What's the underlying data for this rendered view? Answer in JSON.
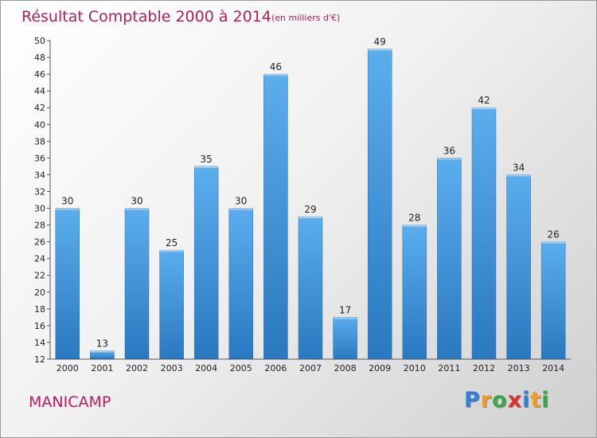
{
  "chart_data": {
    "type": "bar",
    "title": "Résultat Comptable 2000 à 2014",
    "subtitle": "(en milliers d'€)",
    "categories": [
      "2000",
      "2001",
      "2002",
      "2003",
      "2004",
      "2005",
      "2006",
      "2007",
      "2008",
      "2009",
      "2010",
      "2011",
      "2012",
      "2013",
      "2014"
    ],
    "values": [
      30,
      13,
      30,
      25,
      35,
      30,
      46,
      29,
      17,
      49,
      28,
      36,
      42,
      34,
      26
    ],
    "ylim": [
      12,
      50
    ],
    "yticks": [
      12,
      14,
      16,
      18,
      20,
      22,
      24,
      26,
      28,
      30,
      32,
      34,
      36,
      38,
      40,
      42,
      44,
      46,
      48,
      50
    ],
    "grid": false,
    "bar_color": "#3f96dd"
  },
  "commune": "MANICAMP",
  "brand": {
    "letters": [
      "P",
      "r",
      "o",
      "x",
      "i",
      "t",
      "i"
    ],
    "colors": [
      "#2f7fd8",
      "#f29d1f",
      "#3aa64a",
      "#d8302a",
      "#2f7fd8",
      "#f29d1f",
      "#3aa64a"
    ]
  }
}
